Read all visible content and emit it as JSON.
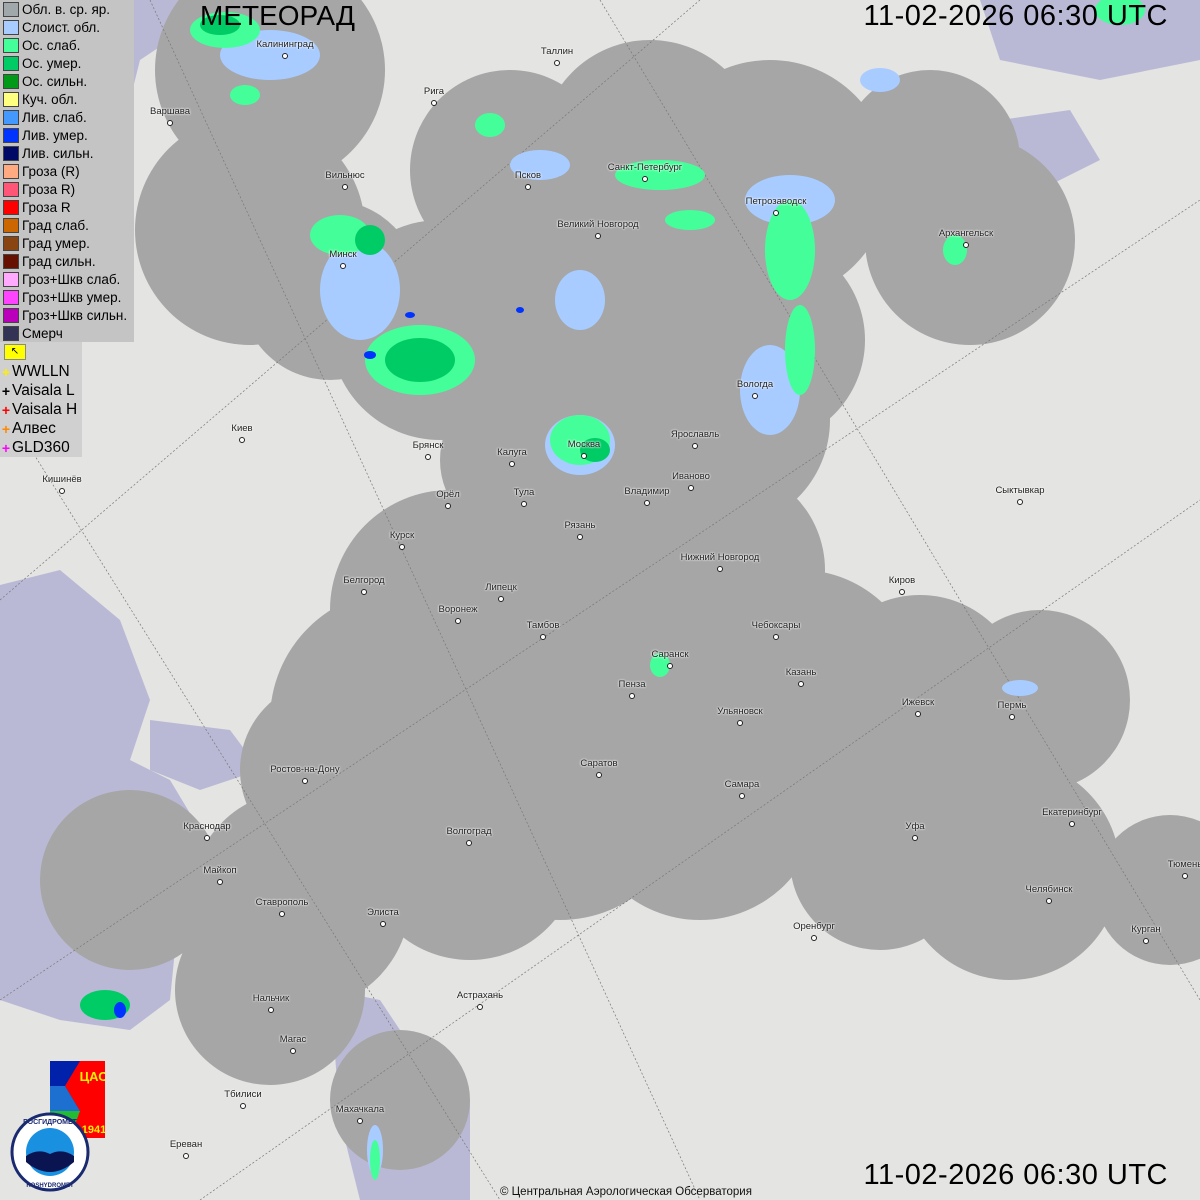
{
  "header": {
    "title": "МЕТЕОРАД",
    "timestamp_top": "11-02-2026  06:30 UTC",
    "timestamp_bottom": "11-02-2026  06:30 UTC"
  },
  "legend": [
    {
      "label": "Обл. в. ср. яр.",
      "color": "#a0a8ac"
    },
    {
      "label": "Слоист. обл.",
      "color": "#a8ccff"
    },
    {
      "label": "Ос. слаб.",
      "color": "#44ff99"
    },
    {
      "label": "Ос. умер.",
      "color": "#00cc66"
    },
    {
      "label": "Ос. сильн.",
      "color": "#009918"
    },
    {
      "label": "Куч. обл.",
      "color": "#ffff80"
    },
    {
      "label": "Лив. слаб.",
      "color": "#4499ff"
    },
    {
      "label": "Лив. умер.",
      "color": "#0033ff"
    },
    {
      "label": "Лив. сильн.",
      "color": "#000a66"
    },
    {
      "label": "Гроза (R)",
      "color": "#ffaa80"
    },
    {
      "label": "Гроза R)",
      "color": "#ff5577"
    },
    {
      "label": "Гроза R",
      "color": "#ff0000"
    },
    {
      "label": "Град слаб.",
      "color": "#cc6600"
    },
    {
      "label": "Град умер.",
      "color": "#884411"
    },
    {
      "label": "Град сильн.",
      "color": "#661100"
    },
    {
      "label": "Гроз+Шкв слаб.",
      "color": "#ffaaff"
    },
    {
      "label": "Гроз+Шкв умер.",
      "color": "#ff44ff"
    },
    {
      "label": "Гроз+Шкв сильн.",
      "color": "#bb00bb"
    },
    {
      "label": "Смерч",
      "color": "#333355"
    }
  ],
  "lightning": {
    "toggle_icon": "cursor-flag-icon",
    "items": [
      {
        "label": "WWLLN",
        "color": "#ffee00"
      },
      {
        "label": "Vaisala L",
        "color": "#000000"
      },
      {
        "label": "Vaisala H",
        "color": "#ff0000"
      },
      {
        "label": "Алвес",
        "color": "#ff8800"
      },
      {
        "label": "GLD360",
        "color": "#ff00ff"
      }
    ]
  },
  "cities": [
    "Калининград",
    "Таллин",
    "Рига",
    "Варшава",
    "Санкт-Петербург",
    "Псков",
    "Вильнюс",
    "Петрозаводск",
    "Великий Новгород",
    "Архангельск",
    "Минск",
    "Вологда",
    "Киев",
    "Брянск",
    "Москва",
    "Ярославль",
    "Калуга",
    "Иваново",
    "Кишинёв",
    "Тула",
    "Орёл",
    "Владимир",
    "Сыктывкар",
    "Рязань",
    "Курск",
    "Нижний Новгород",
    "Белгород",
    "Киров",
    "Липецк",
    "Воронеж",
    "Тамбов",
    "Чебоксары",
    "Саранск",
    "Пенза",
    "Казань",
    "Ижевск",
    "Пермь",
    "Ульяновск",
    "Саратов",
    "Ростов-на-Дону",
    "Самара",
    "Екатеринбург",
    "Краснодар",
    "Волгоград",
    "Уфа",
    "Майкоп",
    "Тюмень",
    "Челябинск",
    "Ставрополь",
    "Элиста",
    "Оренбург",
    "Курган",
    "Астрахань",
    "Нальчик",
    "Магас",
    "Махачкала",
    "Тбилиси",
    "Ереван"
  ],
  "copyright": "© Центральная Аэрологическая Обсерватория",
  "logos": {
    "cao_text": "ЦАО",
    "cao_year": "1941",
    "roshydromet_ru": "РОСГИДРОМЕТ",
    "roshydromet_en": "ROSHYDROMET"
  },
  "colors": {
    "map_land": "#e4e4e2",
    "sea": "#b8b8d8",
    "radar_coverage": "#a6a6a6"
  }
}
